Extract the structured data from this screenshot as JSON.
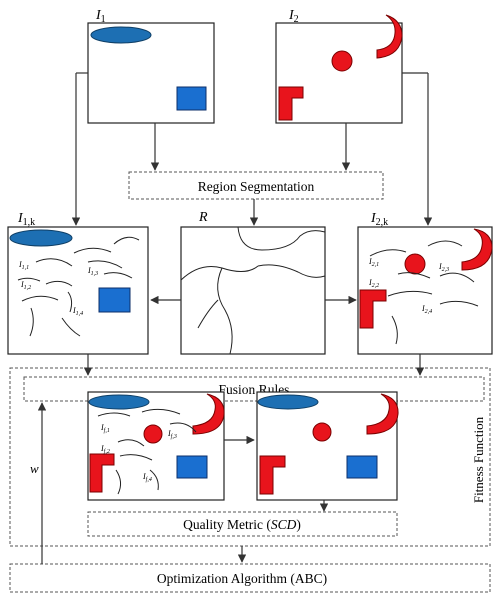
{
  "images": {
    "i1": {
      "letter": "I",
      "sub": "1"
    },
    "i2": {
      "letter": "I",
      "sub": "2"
    },
    "i1k": {
      "letter": "I",
      "sub": "1,k"
    },
    "i2k": {
      "letter": "I",
      "sub": "2,k"
    },
    "r": {
      "label": "R"
    }
  },
  "boxes": {
    "region_segmentation": "Region Segmentation",
    "fusion_rules": "Fusion Rules",
    "quality_metric_prefix": "Quality Metric (",
    "quality_metric_em": "SCD",
    "quality_metric_suffix": ")",
    "optimization": "Optimization Algorithm (ABC)"
  },
  "side_labels": {
    "fitness_function": "Fitness Function",
    "w": "w"
  },
  "region_labels": {
    "i1k": [
      {
        "letter": "I",
        "sub": "1,1"
      },
      {
        "letter": "I",
        "sub": "1,3"
      },
      {
        "letter": "I",
        "sub": "1,2"
      },
      {
        "letter": "I",
        "sub": "1,4"
      }
    ],
    "i2k": [
      {
        "letter": "I",
        "sub": "2,1"
      },
      {
        "letter": "I",
        "sub": "2,3"
      },
      {
        "letter": "I",
        "sub": "2,2"
      },
      {
        "letter": "I",
        "sub": "2,4"
      }
    ],
    "fused": [
      {
        "letter": "I",
        "sub": "f,1"
      },
      {
        "letter": "I",
        "sub": "f,3"
      },
      {
        "letter": "I",
        "sub": "f,2"
      },
      {
        "letter": "I",
        "sub": "f,4"
      }
    ]
  },
  "colors": {
    "ellipse": "#1d6fb3",
    "ellipse_stroke": "#0f3f66",
    "square": "#1a6fd0",
    "square_stroke": "#0c2f6a",
    "red": "#e8141c",
    "red_stroke": "#7a0000",
    "line": "#222222",
    "dash": "#555555"
  }
}
